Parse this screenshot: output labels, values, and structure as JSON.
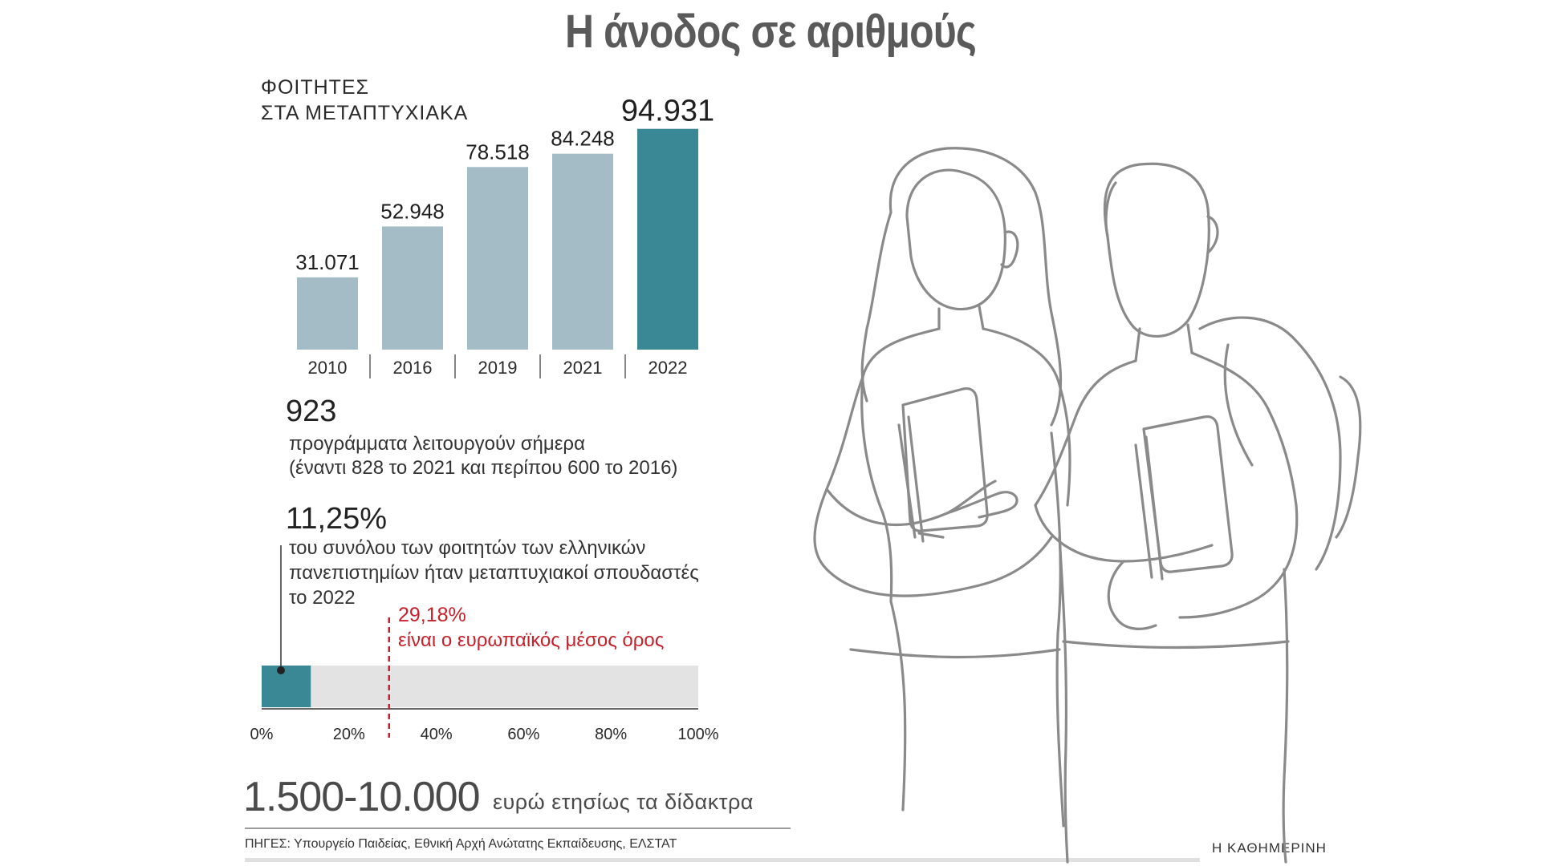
{
  "title": "Η άνοδος σε αριθμούς",
  "colors": {
    "bar_light": "#a3bcc6",
    "bar_highlight": "#3a8795",
    "track": "#e3e3e3",
    "european_marker": "#c8202a",
    "title_gray": "#5a5a5a",
    "illustration_stroke": "#8a8a8a"
  },
  "chart_data": [
    {
      "type": "bar",
      "title_lines": [
        "ΦΟΙΤΗΤΕΣ",
        "ΣΤΑ ΜΕΤΑΠΤΥΧΙΑΚΑ"
      ],
      "categories": [
        "2010",
        "2016",
        "2019",
        "2021",
        "2022"
      ],
      "values": [
        31071,
        52948,
        78518,
        84248,
        94931
      ],
      "value_labels": [
        "31.071",
        "52.948",
        "78.518",
        "84.248",
        "94.931"
      ],
      "highlight_index": 4,
      "ylim": [
        0,
        100000
      ]
    },
    {
      "type": "bar",
      "orientation": "horizontal",
      "value": 11.25,
      "reference_value": 29.18,
      "xlim": [
        0,
        100
      ],
      "tick_labels": [
        "0%",
        "20%",
        "40%",
        "60%",
        "80%",
        "100%"
      ],
      "tick_values": [
        0,
        20,
        40,
        60,
        80,
        100
      ]
    }
  ],
  "programs": {
    "number": "923",
    "lines": [
      "προγράμματα λειτουργούν σήμερα",
      "(έναντι 828 το 2021 και περίπου 600 το 2016)"
    ]
  },
  "share": {
    "number": "11,25%",
    "lines": [
      "του συνόλου των φοιτητών των ελληνικών",
      "πανεπιστημίων ήταν μεταπτυχιακοί σπουδαστές",
      "το 2022"
    ]
  },
  "european": {
    "number": "29,18%",
    "text": "είναι ο ευρωπαϊκός μέσος όρος"
  },
  "fees": {
    "range": "1.500-10.000",
    "text": "ευρώ ετησίως τα δίδακτρα"
  },
  "sources": "ΠΗΓΕΣ: Υπουργείο Παιδείας, Εθνική Αρχή Ανώτατης Εκπαίδευσης, ΕΛΣΤΑΤ",
  "brand": "Η ΚΑΘΗΜΕΡΙΝΗ",
  "illustration": "two-students-line-drawing"
}
